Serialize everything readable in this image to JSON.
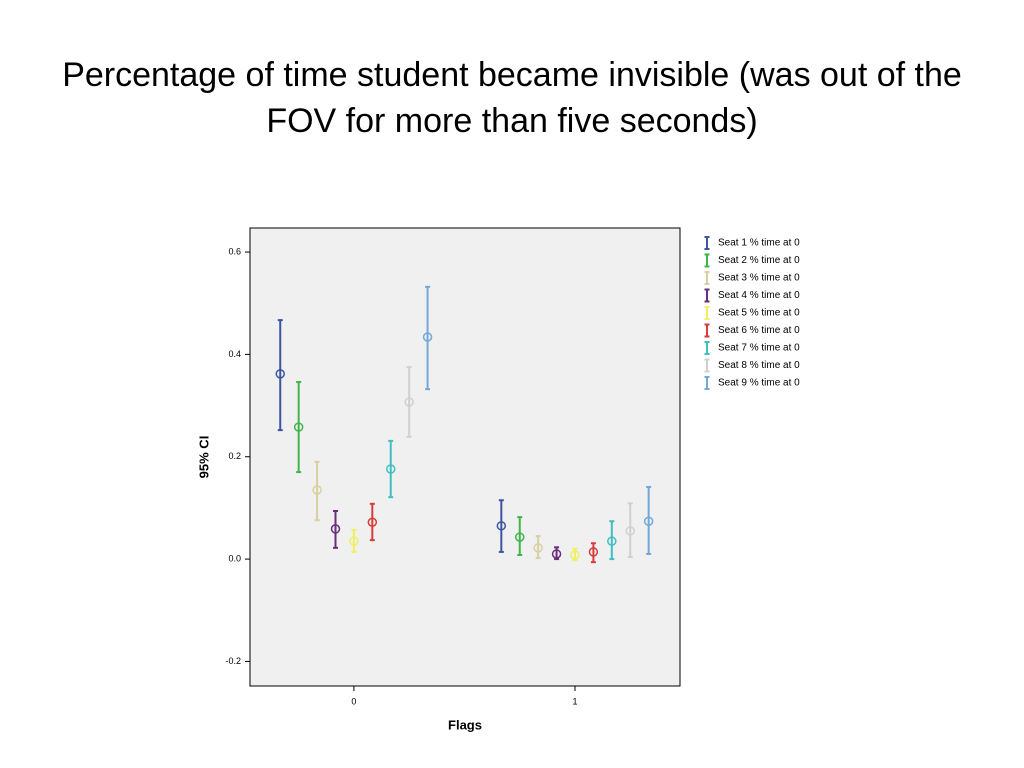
{
  "chart_data": {
    "type": "errorbar",
    "title": "Percentage of time student became invisible (was out of the FOV for more than five seconds)",
    "x_label": "Flags",
    "y_label": "95% CI",
    "x": [
      0,
      1
    ],
    "xlim": [
      -0.47,
      1.475
    ],
    "xticks": [
      0,
      1
    ],
    "ylim": [
      -0.248,
      0.647
    ],
    "yticks": [
      -0.2,
      {
        "value": 0,
        "label": "0.0"
      },
      0.2,
      0.4,
      0.6
    ],
    "series": [
      {
        "name": "Seat 1 % time at 0",
        "color": "#3b55a0",
        "values": [
          0.362,
          0.065
        ],
        "lower": [
          0.252,
          0.014
        ],
        "upper": [
          0.467,
          0.115
        ]
      },
      {
        "name": "Seat 2 % time at 0",
        "color": "#3fb54a",
        "values": [
          0.258,
          0.043
        ],
        "lower": [
          0.17,
          0.008
        ],
        "upper": [
          0.346,
          0.082
        ]
      },
      {
        "name": "Seat 3 % time at 0",
        "color": "#d8d0a0",
        "values": [
          0.135,
          0.022
        ],
        "lower": [
          0.076,
          0.002
        ],
        "upper": [
          0.19,
          0.045
        ]
      },
      {
        "name": "Seat 4 % time at 0",
        "color": "#6a2c7c",
        "values": [
          0.059,
          0.01
        ],
        "lower": [
          0.022,
          0.0
        ],
        "upper": [
          0.094,
          0.023
        ]
      },
      {
        "name": "Seat 5 % time at 0",
        "color": "#f0f060",
        "values": [
          0.035,
          0.008
        ],
        "lower": [
          0.014,
          -0.002
        ],
        "upper": [
          0.057,
          0.02
        ]
      },
      {
        "name": "Seat 6 % time at 0",
        "color": "#d93a3a",
        "values": [
          0.072,
          0.014
        ],
        "lower": [
          0.037,
          -0.006
        ],
        "upper": [
          0.108,
          0.031
        ]
      },
      {
        "name": "Seat 7 % time at 0",
        "color": "#3fbfbf",
        "values": [
          0.176,
          0.035
        ],
        "lower": [
          0.121,
          0.0
        ],
        "upper": [
          0.231,
          0.074
        ]
      },
      {
        "name": "Seat 8 % time at 0",
        "color": "#d0d0d0",
        "values": [
          0.307,
          0.055
        ],
        "lower": [
          0.239,
          0.004
        ],
        "upper": [
          0.375,
          0.109
        ]
      },
      {
        "name": "Seat 9 % time at 0",
        "color": "#72a8d8",
        "values": [
          0.434,
          0.074
        ],
        "lower": [
          0.332,
          0.01
        ],
        "upper": [
          0.532,
          0.141
        ]
      }
    ]
  }
}
